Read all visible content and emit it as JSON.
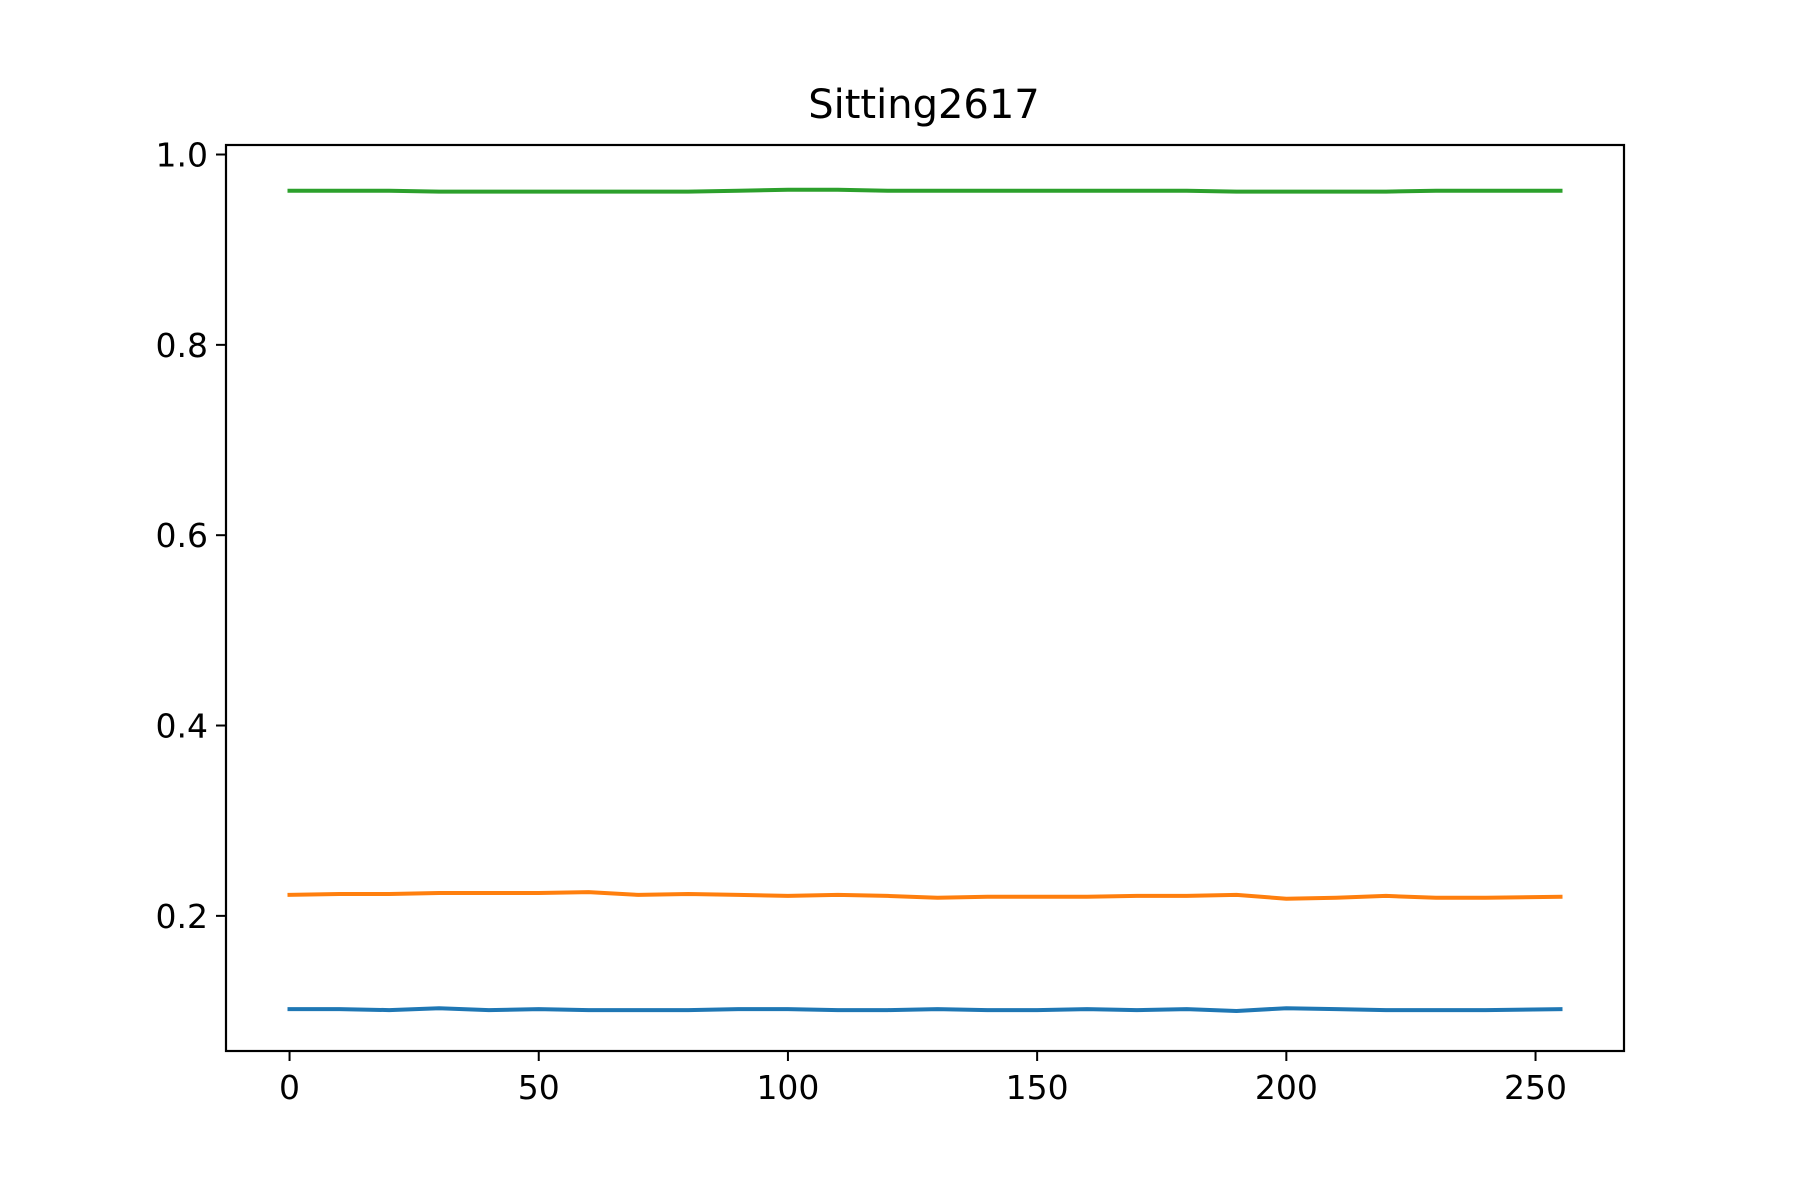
{
  "chart_data": {
    "type": "line",
    "title": "Sitting2617",
    "xlabel": "",
    "ylabel": "",
    "xlim": [
      -12.75,
      267.75
    ],
    "ylim": [
      0.058,
      1.01
    ],
    "x_ticks": [
      0,
      50,
      100,
      150,
      200,
      250
    ],
    "x_tick_labels": [
      "0",
      "50",
      "100",
      "150",
      "200",
      "250"
    ],
    "y_ticks": [
      0.2,
      0.4,
      0.6,
      0.8,
      1.0
    ],
    "y_tick_labels": [
      "0.2",
      "0.4",
      "0.6",
      "0.8",
      "1.0"
    ],
    "grid": false,
    "legend": "none",
    "x": [
      0,
      10,
      20,
      30,
      40,
      50,
      60,
      70,
      80,
      90,
      100,
      110,
      120,
      130,
      140,
      150,
      160,
      170,
      180,
      190,
      200,
      210,
      220,
      230,
      240,
      255
    ],
    "series": [
      {
        "color": "#1f77b4",
        "values": [
          0.102,
          0.102,
          0.101,
          0.103,
          0.101,
          0.102,
          0.101,
          0.101,
          0.101,
          0.102,
          0.102,
          0.101,
          0.101,
          0.102,
          0.101,
          0.101,
          0.102,
          0.101,
          0.102,
          0.1,
          0.103,
          0.102,
          0.101,
          0.101,
          0.101,
          0.102
        ]
      },
      {
        "color": "#ff7f0e",
        "values": [
          0.222,
          0.223,
          0.223,
          0.224,
          0.224,
          0.224,
          0.225,
          0.222,
          0.223,
          0.222,
          0.221,
          0.222,
          0.221,
          0.219,
          0.22,
          0.22,
          0.22,
          0.221,
          0.221,
          0.222,
          0.218,
          0.219,
          0.221,
          0.219,
          0.219,
          0.22
        ]
      },
      {
        "color": "#2ca02c",
        "values": [
          0.962,
          0.962,
          0.962,
          0.961,
          0.961,
          0.961,
          0.961,
          0.961,
          0.961,
          0.962,
          0.963,
          0.963,
          0.962,
          0.962,
          0.962,
          0.962,
          0.962,
          0.962,
          0.962,
          0.961,
          0.961,
          0.961,
          0.961,
          0.962,
          0.962,
          0.962
        ]
      }
    ]
  }
}
